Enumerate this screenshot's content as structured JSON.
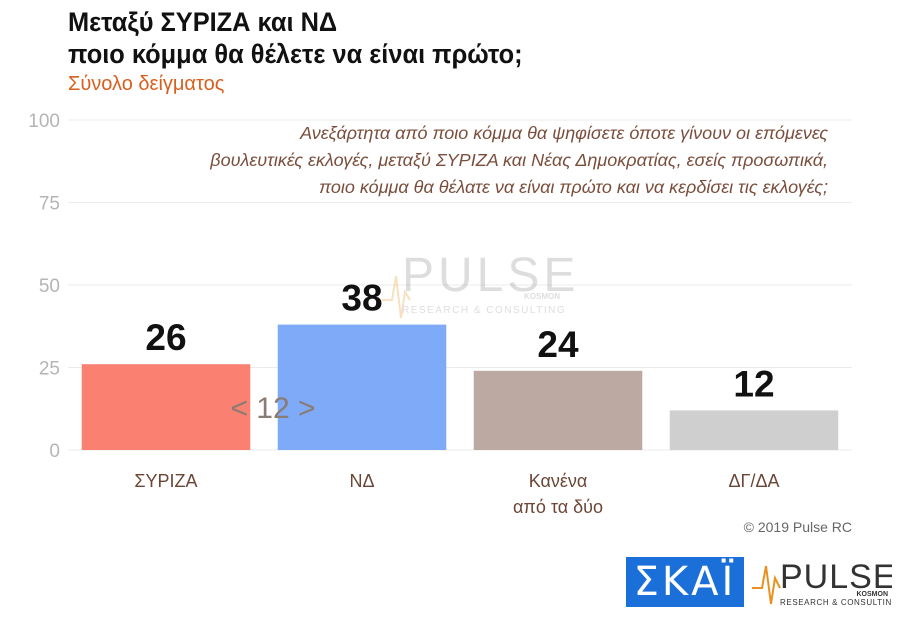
{
  "title_lines": [
    "Μεταξύ ΣΥΡΙΖΑ και ΝΔ",
    "ποιο κόμμα θα θέλετε να είναι πρώτο;"
  ],
  "subtitle": "Σύνολο δείγματος",
  "question_lines": [
    "Ανεξάρτητα από ποιο κόμμα θα ψηφίσετε όποτε γίνουν οι επόμενες",
    "βουλευτικές εκλογές, μεταξύ ΣΥΡΙΖΑ και Νέας Δημοκρατίας, εσείς προσωπικά,",
    "ποιο κόμμα θα θέλατε να είναι πρώτο και να κερδίσει τις εκλογές;"
  ],
  "chart_data": {
    "type": "bar",
    "categories": [
      [
        "ΣΥΡΙΖΑ"
      ],
      [
        "ΝΔ"
      ],
      [
        "Κανένα",
        "από τα δύο"
      ],
      [
        "ΔΓ/ΔΑ"
      ]
    ],
    "values": [
      26,
      38,
      24,
      12
    ],
    "colors": [
      "#fa8072",
      "#7eaaf7",
      "#bca9a1",
      "#cfcfcf"
    ],
    "ylim": [
      0,
      100
    ],
    "yticks": [
      0,
      25,
      50,
      75,
      100
    ],
    "grid": true,
    "annotation": "< 12 >"
  },
  "watermark": {
    "brand": "PULSE",
    "sub": "RESEARCH & CONSULTING",
    "kosmon": "KOSMON"
  },
  "copyright": "© 2019 Pulse RC",
  "logos": {
    "skai": "ΣΚΑΪ",
    "pulse": "PULSE",
    "pulse_sub": "RESEARCH & CONSULTING",
    "pulse_kosmon": "KOSMON"
  }
}
